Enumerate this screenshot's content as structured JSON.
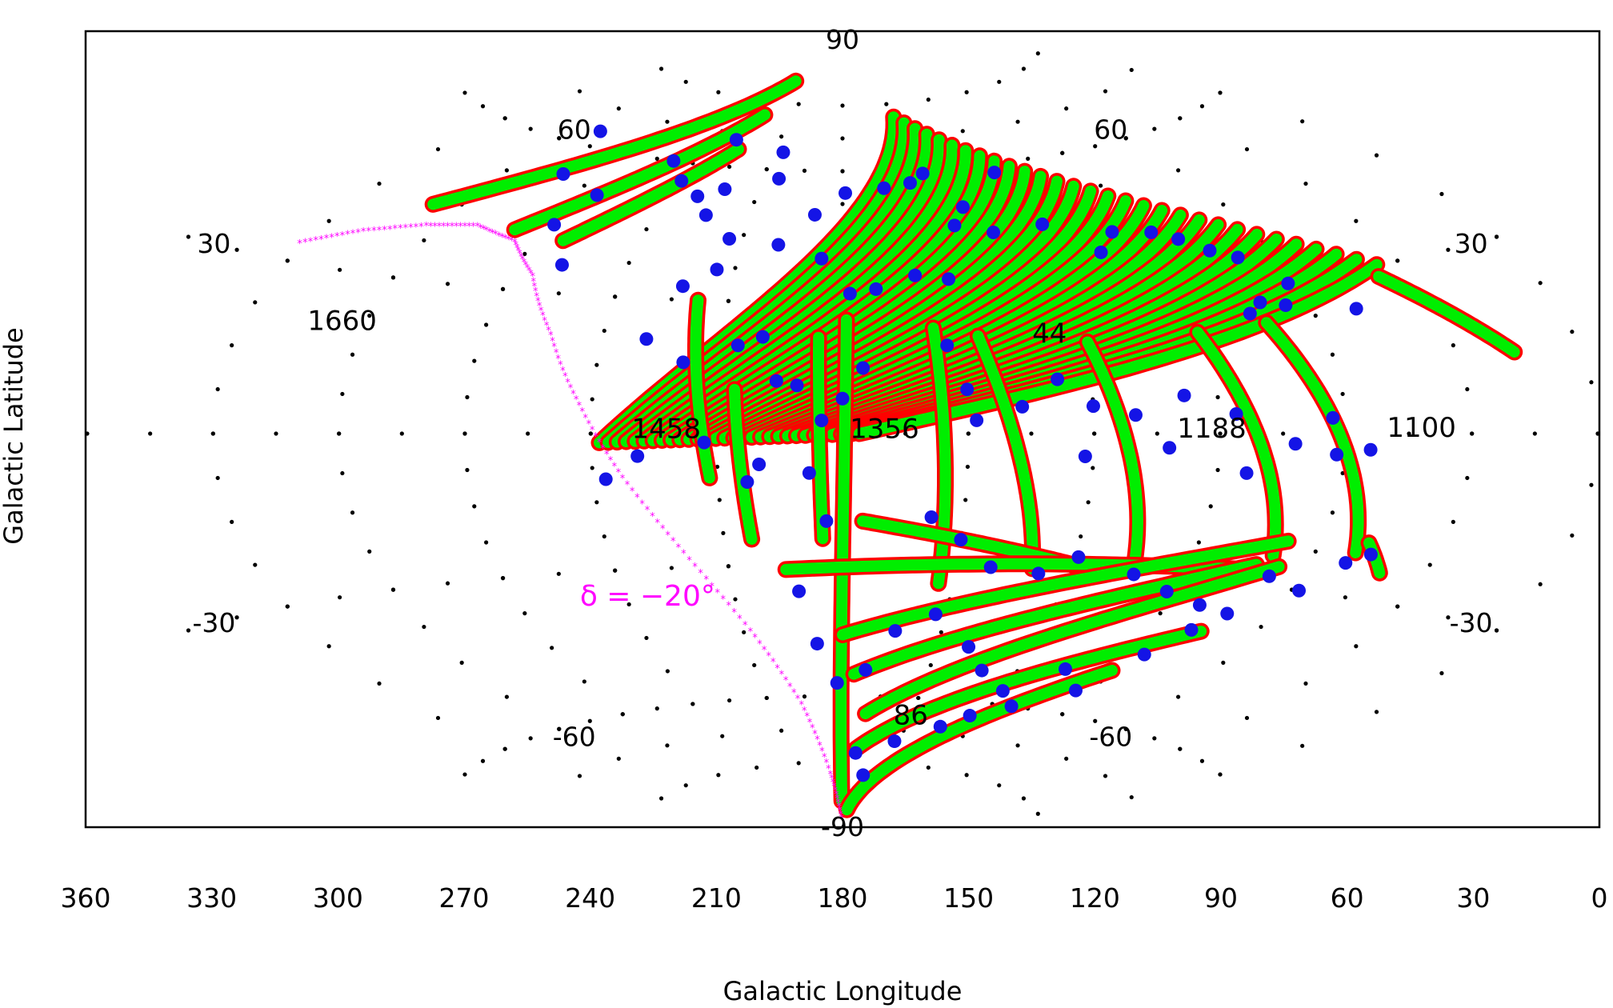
{
  "chart_data": {
    "type": "scatter",
    "projection": "Aitoff equal-area, Galactic coordinates",
    "xlabel": "Galactic Longitude",
    "ylabel": "Galactic Latitude",
    "x_ticks": [
      "360",
      "330",
      "300",
      "270",
      "240",
      "210",
      "180",
      "150",
      "120",
      "90",
      "60",
      "30",
      "0"
    ],
    "xlim": [
      360,
      0
    ],
    "ylim": [
      -90,
      90
    ],
    "lat_labels": [
      {
        "text": "90",
        "lon": 180,
        "lat": 90
      },
      {
        "text": "60",
        "lon": 300,
        "lat": 62
      },
      {
        "text": "60",
        "lon": 60,
        "lat": 62
      },
      {
        "text": "30",
        "lon": 352,
        "lat": 30
      },
      {
        "text": "30",
        "lon": 8,
        "lat": 30
      },
      {
        "text": "-30",
        "lon": 352,
        "lat": -30
      },
      {
        "text": "-30",
        "lon": 8,
        "lat": -30
      },
      {
        "text": "-60",
        "lon": 300,
        "lat": -62
      },
      {
        "text": "-60",
        "lon": 60,
        "lat": -62
      },
      {
        "text": "-90",
        "lon": 180,
        "lat": -90
      }
    ],
    "run_labels": [
      {
        "text": "1660",
        "lon": 306,
        "lat": 21
      },
      {
        "text": "44",
        "lon": 128,
        "lat": 22
      },
      {
        "text": "1458",
        "lon": 222,
        "lat": 1
      },
      {
        "text": "1356",
        "lon": 170,
        "lat": 1
      },
      {
        "text": "1188",
        "lon": 92,
        "lat": 1
      },
      {
        "text": "1100",
        "lon": 42,
        "lat": 1
      },
      {
        "text": "86",
        "lon": 150,
        "lat": -64
      }
    ],
    "annotation": {
      "text": "δ = −20°",
      "color": "#ff00ff",
      "lon": 235,
      "lat": -38
    },
    "grid_dots": true,
    "colors": {
      "stripe_outer": "#ff0000",
      "stripe_inner": "#00ee00",
      "field": "#1414e6",
      "grid": "#000000",
      "declination": "#ff00ff"
    },
    "declination_curve": {
      "label": "δ = −20°",
      "points": [
        [
          331,
          33
        ],
        [
          318,
          37
        ],
        [
          303,
          40
        ],
        [
          289,
          41.5
        ],
        [
          275,
          39.5
        ],
        [
          264,
          33
        ],
        [
          253,
          21
        ],
        [
          243,
          6
        ],
        [
          233,
          -10
        ],
        [
          221,
          -27
        ],
        [
          208,
          -45
        ],
        [
          197,
          -62
        ],
        [
          190,
          -78
        ],
        [
          185,
          -89
        ]
      ]
    },
    "stripes": [
      {
        "lon": [
          308,
          226
        ],
        "lat": [
          44,
          80
        ]
      },
      {
        "lon": [
          278,
          226
        ],
        "lat": [
          42,
          72
        ]
      },
      {
        "lon": [
          262,
          226
        ],
        "lat": [
          41,
          64
        ]
      },
      {
        "lon": [
          218,
          212
        ],
        "lat": [
          30,
          -10
        ]
      },
      {
        "lon": [
          206,
          203
        ],
        "lat": [
          10,
          -24
        ]
      },
      {
        "lon": [
          186,
          185
        ],
        "lat": [
          22,
          -24
        ]
      },
      {
        "lon": [
          179,
          181
        ],
        "lat": [
          26,
          -84
        ]
      },
      {
        "lon": [
          157,
          154
        ],
        "lat": [
          24,
          -34
        ]
      },
      {
        "lon": [
          146,
          130
        ],
        "lat": [
          22,
          -30
        ]
      },
      {
        "lon": [
          119,
          104
        ],
        "lat": [
          20,
          -28
        ]
      },
      {
        "lon": [
          91,
          70
        ],
        "lat": [
          21,
          -24
        ]
      },
      {
        "lon": [
          73,
          50
        ],
        "lat": [
          22,
          -22
        ]
      },
      {
        "lon": [
          38,
          16
        ],
        "lat": [
          28,
          13
        ]
      },
      {
        "lon": [
          48,
          41
        ],
        "lat": [
          -20,
          -25
        ]
      },
      {
        "lon": [
          175,
          118
        ],
        "lat": [
          -20,
          -29
        ]
      },
      {
        "lon": [
          195,
          70
        ],
        "lat": [
          -31,
          -27
        ]
      },
      {
        "lon": [
          180,
          68
        ],
        "lat": [
          -46,
          -21
        ]
      },
      {
        "lon": [
          176,
          73
        ],
        "lat": [
          -55,
          -26
        ]
      },
      {
        "lon": [
          170,
          67
        ],
        "lat": [
          -64,
          -26
        ]
      },
      {
        "lon": [
          172,
          75
        ],
        "lat": [
          -72,
          -40
        ]
      },
      {
        "lon": [
          170,
          90
        ],
        "lat": [
          -86,
          -50
        ]
      }
    ],
    "fan": {
      "lon_start": [
        238,
        176
      ],
      "lon_end": [
        150,
        36
      ],
      "lat_start": [
        -2,
        0
      ],
      "lat_end": [
        72,
        30
      ],
      "count": 30
    },
    "fields": [
      [
        290,
        63
      ],
      [
        281,
        54
      ],
      [
        263,
        51
      ],
      [
        268,
        44
      ],
      [
        258,
        36
      ],
      [
        248,
        60
      ],
      [
        239,
        56
      ],
      [
        230,
        53
      ],
      [
        230,
        66
      ],
      [
        222,
        55
      ],
      [
        206,
        64
      ],
      [
        204,
        58
      ],
      [
        224,
        49
      ],
      [
        214,
        44
      ],
      [
        215,
        37
      ],
      [
        223,
        33
      ],
      [
        199,
        43
      ],
      [
        189,
        50
      ],
      [
        179,
        55
      ],
      [
        165,
        56
      ],
      [
        155,
        57
      ],
      [
        149,
        59
      ],
      [
        122,
        58
      ],
      [
        140,
        51
      ],
      [
        186,
        40
      ],
      [
        178,
        32
      ],
      [
        171,
        33
      ],
      [
        160,
        36
      ],
      [
        151,
        35
      ],
      [
        145,
        47
      ],
      [
        134,
        45
      ],
      [
        118,
        46
      ],
      [
        106,
        39
      ],
      [
        99,
        43
      ],
      [
        88,
        42
      ],
      [
        82,
        40
      ],
      [
        76,
        37
      ],
      [
        70,
        35
      ],
      [
        72,
        26
      ],
      [
        76,
        24
      ],
      [
        66,
        25
      ],
      [
        62,
        29
      ],
      [
        49,
        23
      ],
      [
        229,
        21
      ],
      [
        219,
        16
      ],
      [
        206,
        20
      ],
      [
        200,
        22
      ],
      [
        196,
        12
      ],
      [
        191,
        11
      ],
      [
        185,
        3
      ],
      [
        180,
        8
      ],
      [
        175,
        15
      ],
      [
        154,
        20
      ],
      [
        150,
        10
      ],
      [
        148,
        3
      ],
      [
        137,
        6
      ],
      [
        128,
        12
      ],
      [
        120,
        6
      ],
      [
        110,
        4
      ],
      [
        102,
        -3
      ],
      [
        98,
        8
      ],
      [
        86,
        4
      ],
      [
        83,
        -8
      ],
      [
        72,
        -2
      ],
      [
        63,
        3
      ],
      [
        54,
        -3
      ],
      [
        237,
        -10
      ],
      [
        229,
        -5
      ],
      [
        213,
        -2
      ],
      [
        203,
        -11
      ],
      [
        200,
        -7
      ],
      [
        188,
        -9
      ],
      [
        184,
        -20
      ],
      [
        158,
        -19
      ],
      [
        150,
        -24
      ],
      [
        141,
        -30
      ],
      [
        128,
        -31
      ],
      [
        119,
        -27
      ],
      [
        103,
        -30
      ],
      [
        92,
        -33
      ],
      [
        81,
        -35
      ],
      [
        68,
        -28
      ],
      [
        58,
        -30
      ],
      [
        51,
        -24
      ],
      [
        46,
        -22
      ],
      [
        122,
        -5
      ],
      [
        62,
        -4
      ],
      [
        192,
        -36
      ],
      [
        188,
        -48
      ],
      [
        182,
        -57
      ],
      [
        172,
        -54
      ],
      [
        164,
        -45
      ],
      [
        153,
        -41
      ],
      [
        140,
        -48
      ],
      [
        132,
        -53
      ],
      [
        120,
        -57
      ],
      [
        112,
        -60
      ],
      [
        105,
        -51
      ],
      [
        95,
        -55
      ],
      [
        85,
        -46
      ],
      [
        78,
        -40
      ],
      [
        72,
        -36
      ],
      [
        172,
        -73
      ],
      [
        163,
        -78
      ],
      [
        152,
        -70
      ],
      [
        134,
        -66
      ],
      [
        125,
        -63
      ]
    ]
  }
}
